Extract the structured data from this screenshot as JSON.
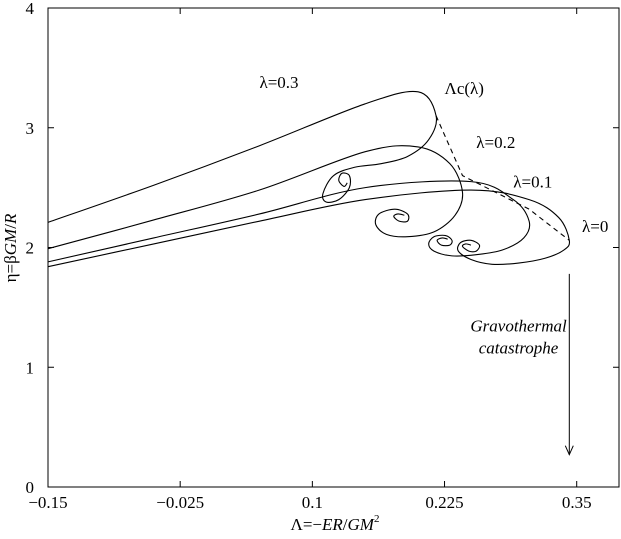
{
  "chart_data": {
    "type": "line",
    "xlabel": "Λ=−ER/GM²",
    "ylabel": "η=βGM/R",
    "xlim": [
      -0.15,
      0.39
    ],
    "ylim": [
      0,
      4
    ],
    "x_ticks": [
      -0.15,
      -0.025,
      0.1,
      0.225,
      0.35
    ],
    "x_tick_labels": [
      "−0.15",
      "−0.025",
      "0.1",
      "0.225",
      "0.35"
    ],
    "y_ticks": [
      0,
      1,
      2,
      3,
      4
    ],
    "y_tick_labels": [
      "0",
      "1",
      "2",
      "3",
      "4"
    ],
    "grid": false,
    "series": [
      {
        "name": "λ=0",
        "x": [
          -0.15,
          -0.05,
          0.05,
          0.15,
          0.25,
          0.305,
          0.333,
          0.343,
          0.338,
          0.32,
          0.295,
          0.27,
          0.25,
          0.238,
          0.24,
          0.25,
          0.258,
          0.255,
          0.248,
          0.242,
          0.245,
          0.25
        ],
        "y": [
          1.84,
          2.03,
          2.22,
          2.4,
          2.48,
          2.4,
          2.25,
          2.06,
          1.98,
          1.91,
          1.87,
          1.86,
          1.9,
          1.97,
          2.04,
          2.06,
          2.02,
          1.97,
          1.97,
          2.01,
          2.03,
          2.02
        ]
      },
      {
        "name": "λ=0.1",
        "x": [
          -0.15,
          -0.05,
          0.05,
          0.15,
          0.25,
          0.29,
          0.305,
          0.3,
          0.28,
          0.255,
          0.232,
          0.215,
          0.21,
          0.215,
          0.226,
          0.232,
          0.23,
          0.222,
          0.218,
          0.223,
          0.228
        ],
        "y": [
          1.88,
          2.08,
          2.28,
          2.5,
          2.55,
          2.4,
          2.22,
          2.08,
          1.98,
          1.94,
          1.93,
          1.97,
          2.03,
          2.09,
          2.1,
          2.06,
          2.02,
          2.02,
          2.06,
          2.08,
          2.07
        ]
      },
      {
        "name": "λ=0.2",
        "x": [
          -0.15,
          -0.05,
          0.05,
          0.15,
          0.2,
          0.23,
          0.242,
          0.235,
          0.215,
          0.19,
          0.17,
          0.16,
          0.163,
          0.178,
          0.19,
          0.19,
          0.182,
          0.177,
          0.181,
          0.187
        ],
        "y": [
          1.99,
          2.23,
          2.48,
          2.8,
          2.84,
          2.7,
          2.46,
          2.27,
          2.13,
          2.09,
          2.11,
          2.19,
          2.28,
          2.32,
          2.28,
          2.22,
          2.22,
          2.26,
          2.28,
          2.27
        ]
      },
      {
        "name": "λ=0.3",
        "x": [
          -0.15,
          -0.05,
          0.05,
          0.15,
          0.2,
          0.217,
          0.21,
          0.19,
          0.165,
          0.14,
          0.12,
          0.11,
          0.113,
          0.125,
          0.135,
          0.135,
          0.128,
          0.125,
          0.13,
          0.133
        ],
        "y": [
          2.21,
          2.52,
          2.85,
          3.2,
          3.3,
          3.1,
          2.9,
          2.76,
          2.7,
          2.67,
          2.6,
          2.45,
          2.38,
          2.4,
          2.5,
          2.6,
          2.62,
          2.56,
          2.51,
          2.54
        ]
      },
      {
        "name": "Λc(λ)",
        "style": "dashed",
        "x": [
          0.217,
          0.242,
          0.305,
          0.343
        ],
        "y": [
          3.1,
          2.6,
          2.32,
          2.06
        ]
      }
    ],
    "labels": [
      {
        "text": "λ=0.3",
        "x": 0.05,
        "y": 3.33
      },
      {
        "text": "Λc(λ)",
        "x": 0.225,
        "y": 3.28
      },
      {
        "text": "λ=0.2",
        "x": 0.255,
        "y": 2.83
      },
      {
        "text": "λ=0.1",
        "x": 0.29,
        "y": 2.5
      },
      {
        "text": "λ=0",
        "x": 0.355,
        "y": 2.13
      }
    ],
    "annotation": {
      "lines": [
        "Gravothermal",
        "catastrophe"
      ],
      "x": 0.295,
      "y": 1.3,
      "arrow_x": 0.343,
      "arrow_from_y": 1.78,
      "arrow_to_y": 0.27
    }
  }
}
